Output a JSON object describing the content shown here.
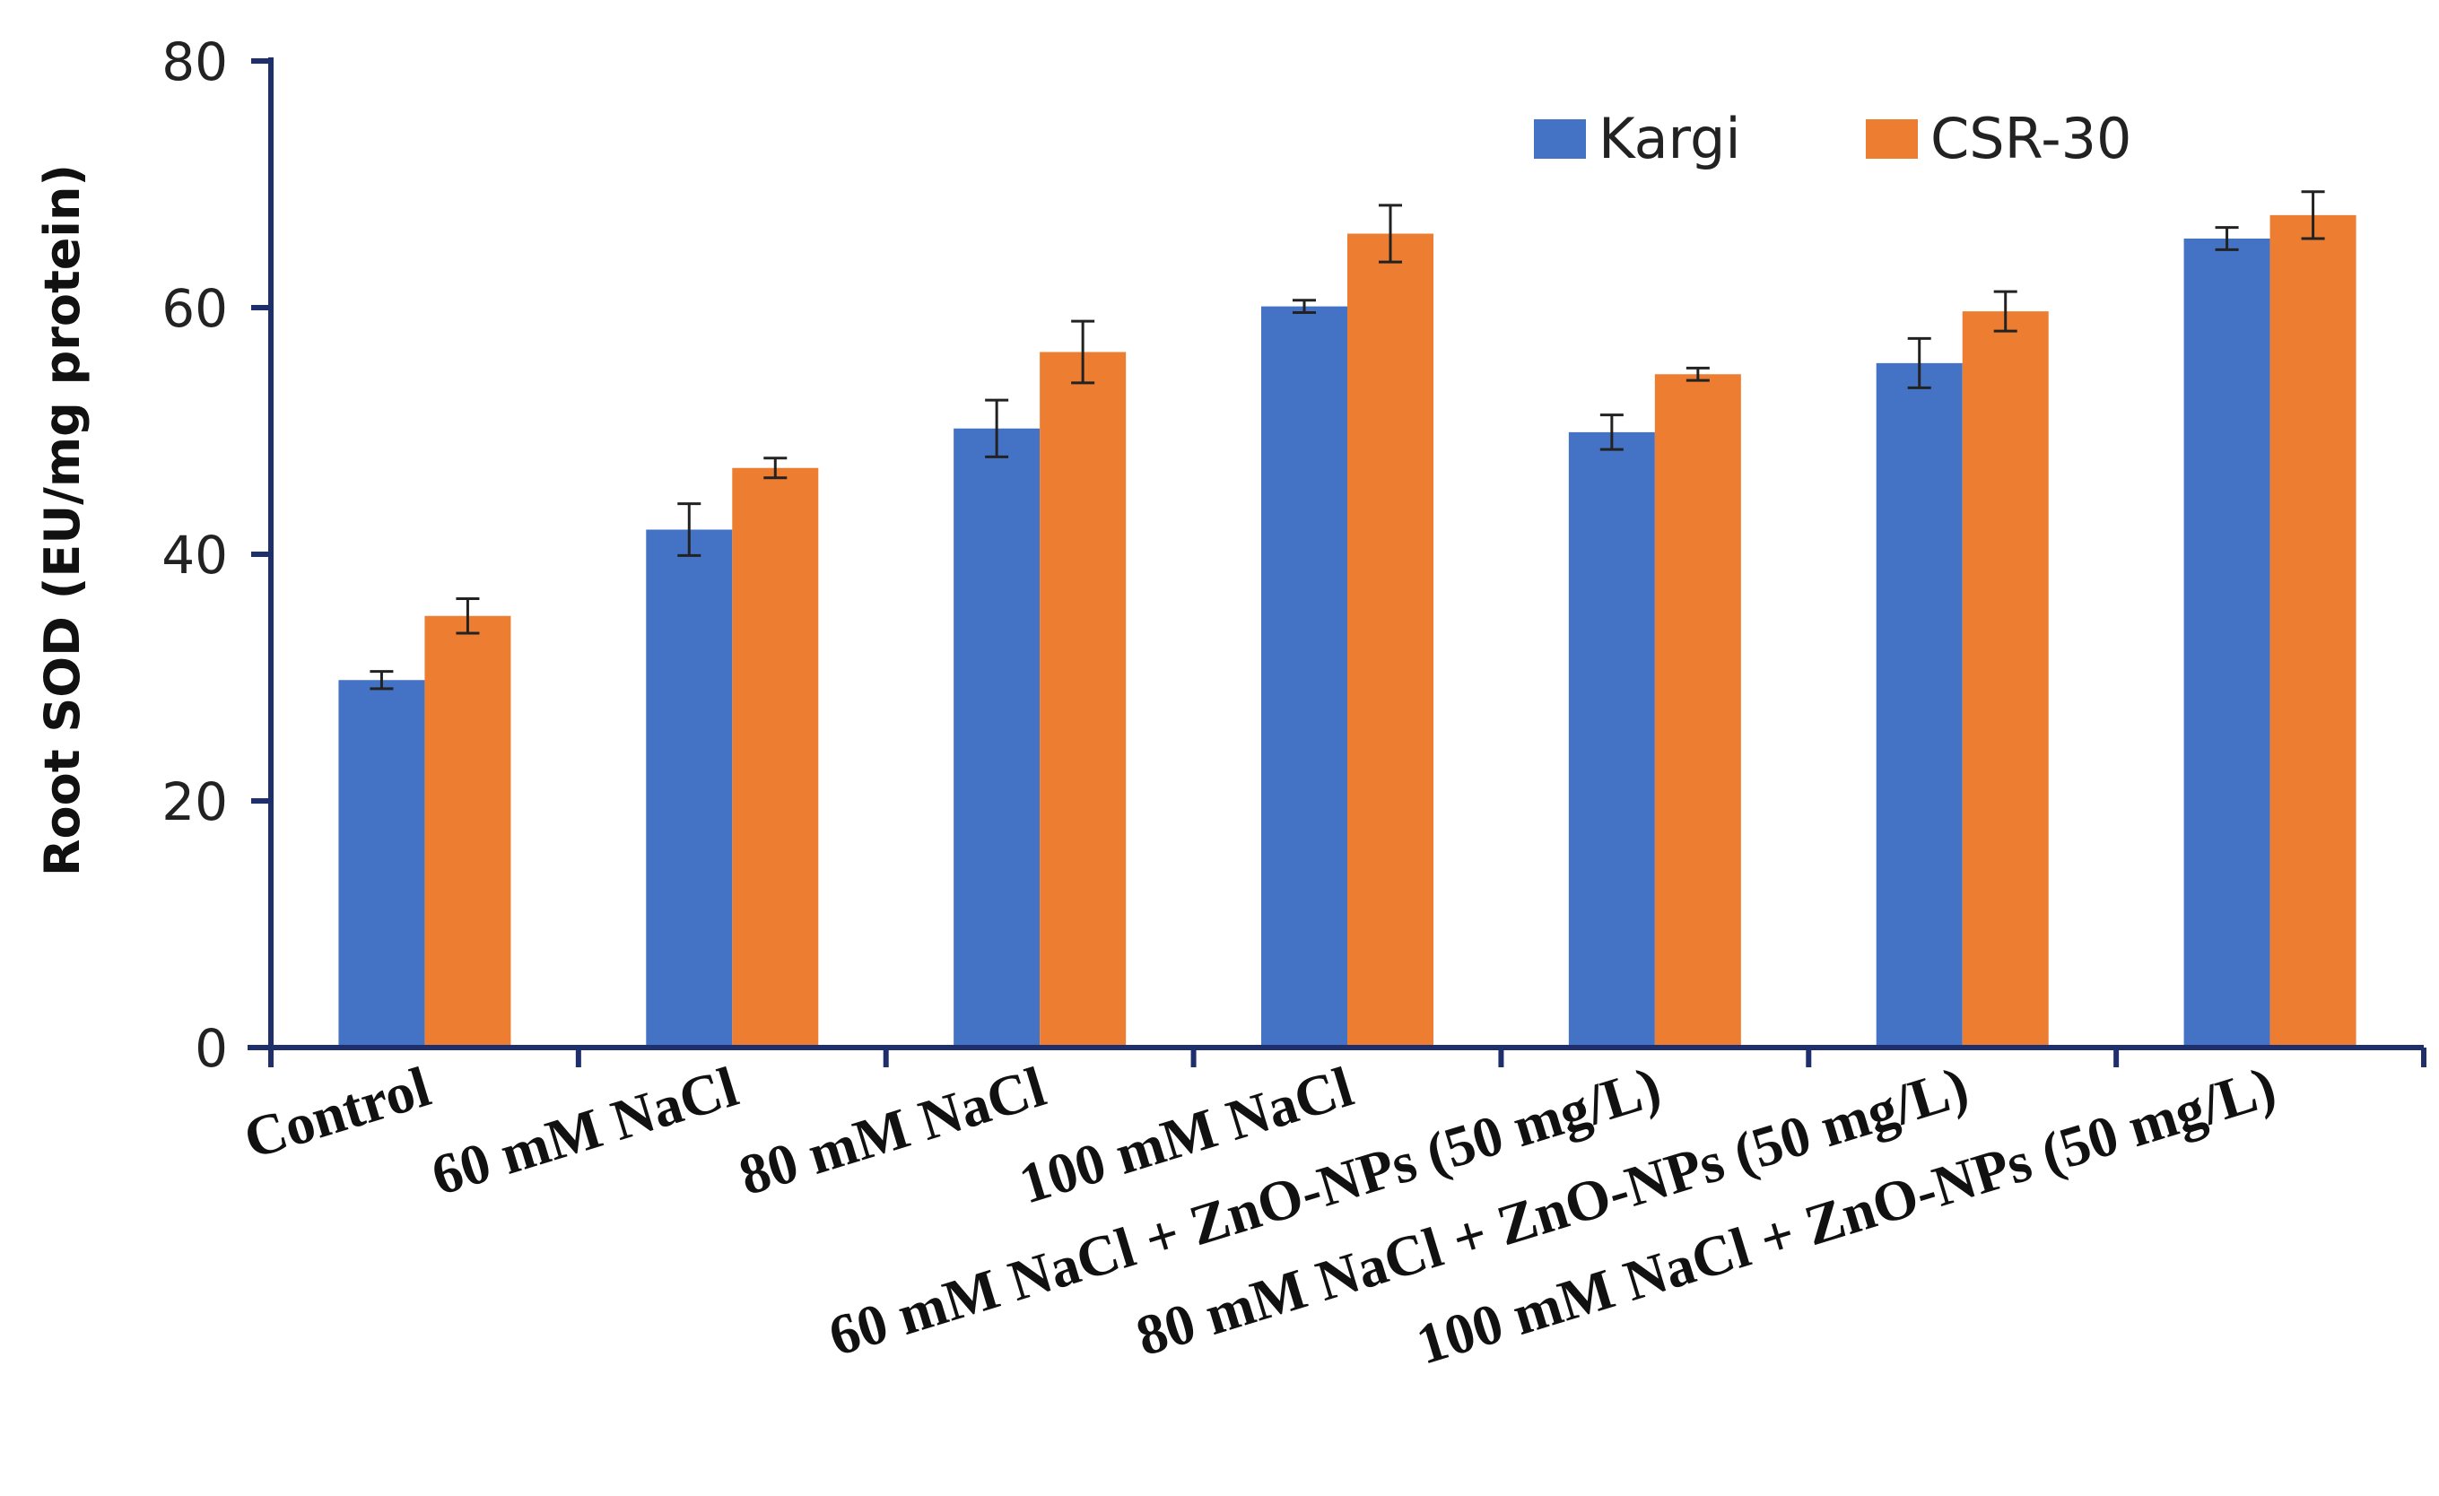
{
  "chart_data": {
    "type": "bar",
    "title": "",
    "xlabel": "",
    "ylabel": "Root SOD  (EU/mg protein)",
    "ylim": [
      0,
      80
    ],
    "yticks": [
      0,
      20,
      40,
      60,
      80
    ],
    "grid": false,
    "legend_position": "top-right",
    "categories": [
      "Control",
      "60 mM NaCl",
      "80 mM NaCl",
      "100 mM NaCl",
      "60 mM NaCl + ZnO-NPs (50 mg/L)",
      "80 mM NaCl + ZnO-NPs (50 mg/L)",
      "100 mM NaCl + ZnO-NPs (50 mg/L)"
    ],
    "series": [
      {
        "name": "Kargi",
        "color": "#4472C4",
        "values": [
          29.8,
          42.0,
          50.2,
          60.1,
          49.9,
          55.5,
          65.6
        ],
        "errors": [
          0.7,
          2.1,
          2.3,
          0.5,
          1.4,
          2.0,
          0.9
        ]
      },
      {
        "name": "CSR-30",
        "color": "#ED7D31",
        "values": [
          35.0,
          47.0,
          56.4,
          66.0,
          54.6,
          59.7,
          67.5
        ],
        "errors": [
          1.4,
          0.8,
          2.5,
          2.3,
          0.5,
          1.6,
          1.9
        ]
      }
    ]
  },
  "colors": {
    "axis": "#1F2F6B",
    "error_bar": "#222222"
  }
}
